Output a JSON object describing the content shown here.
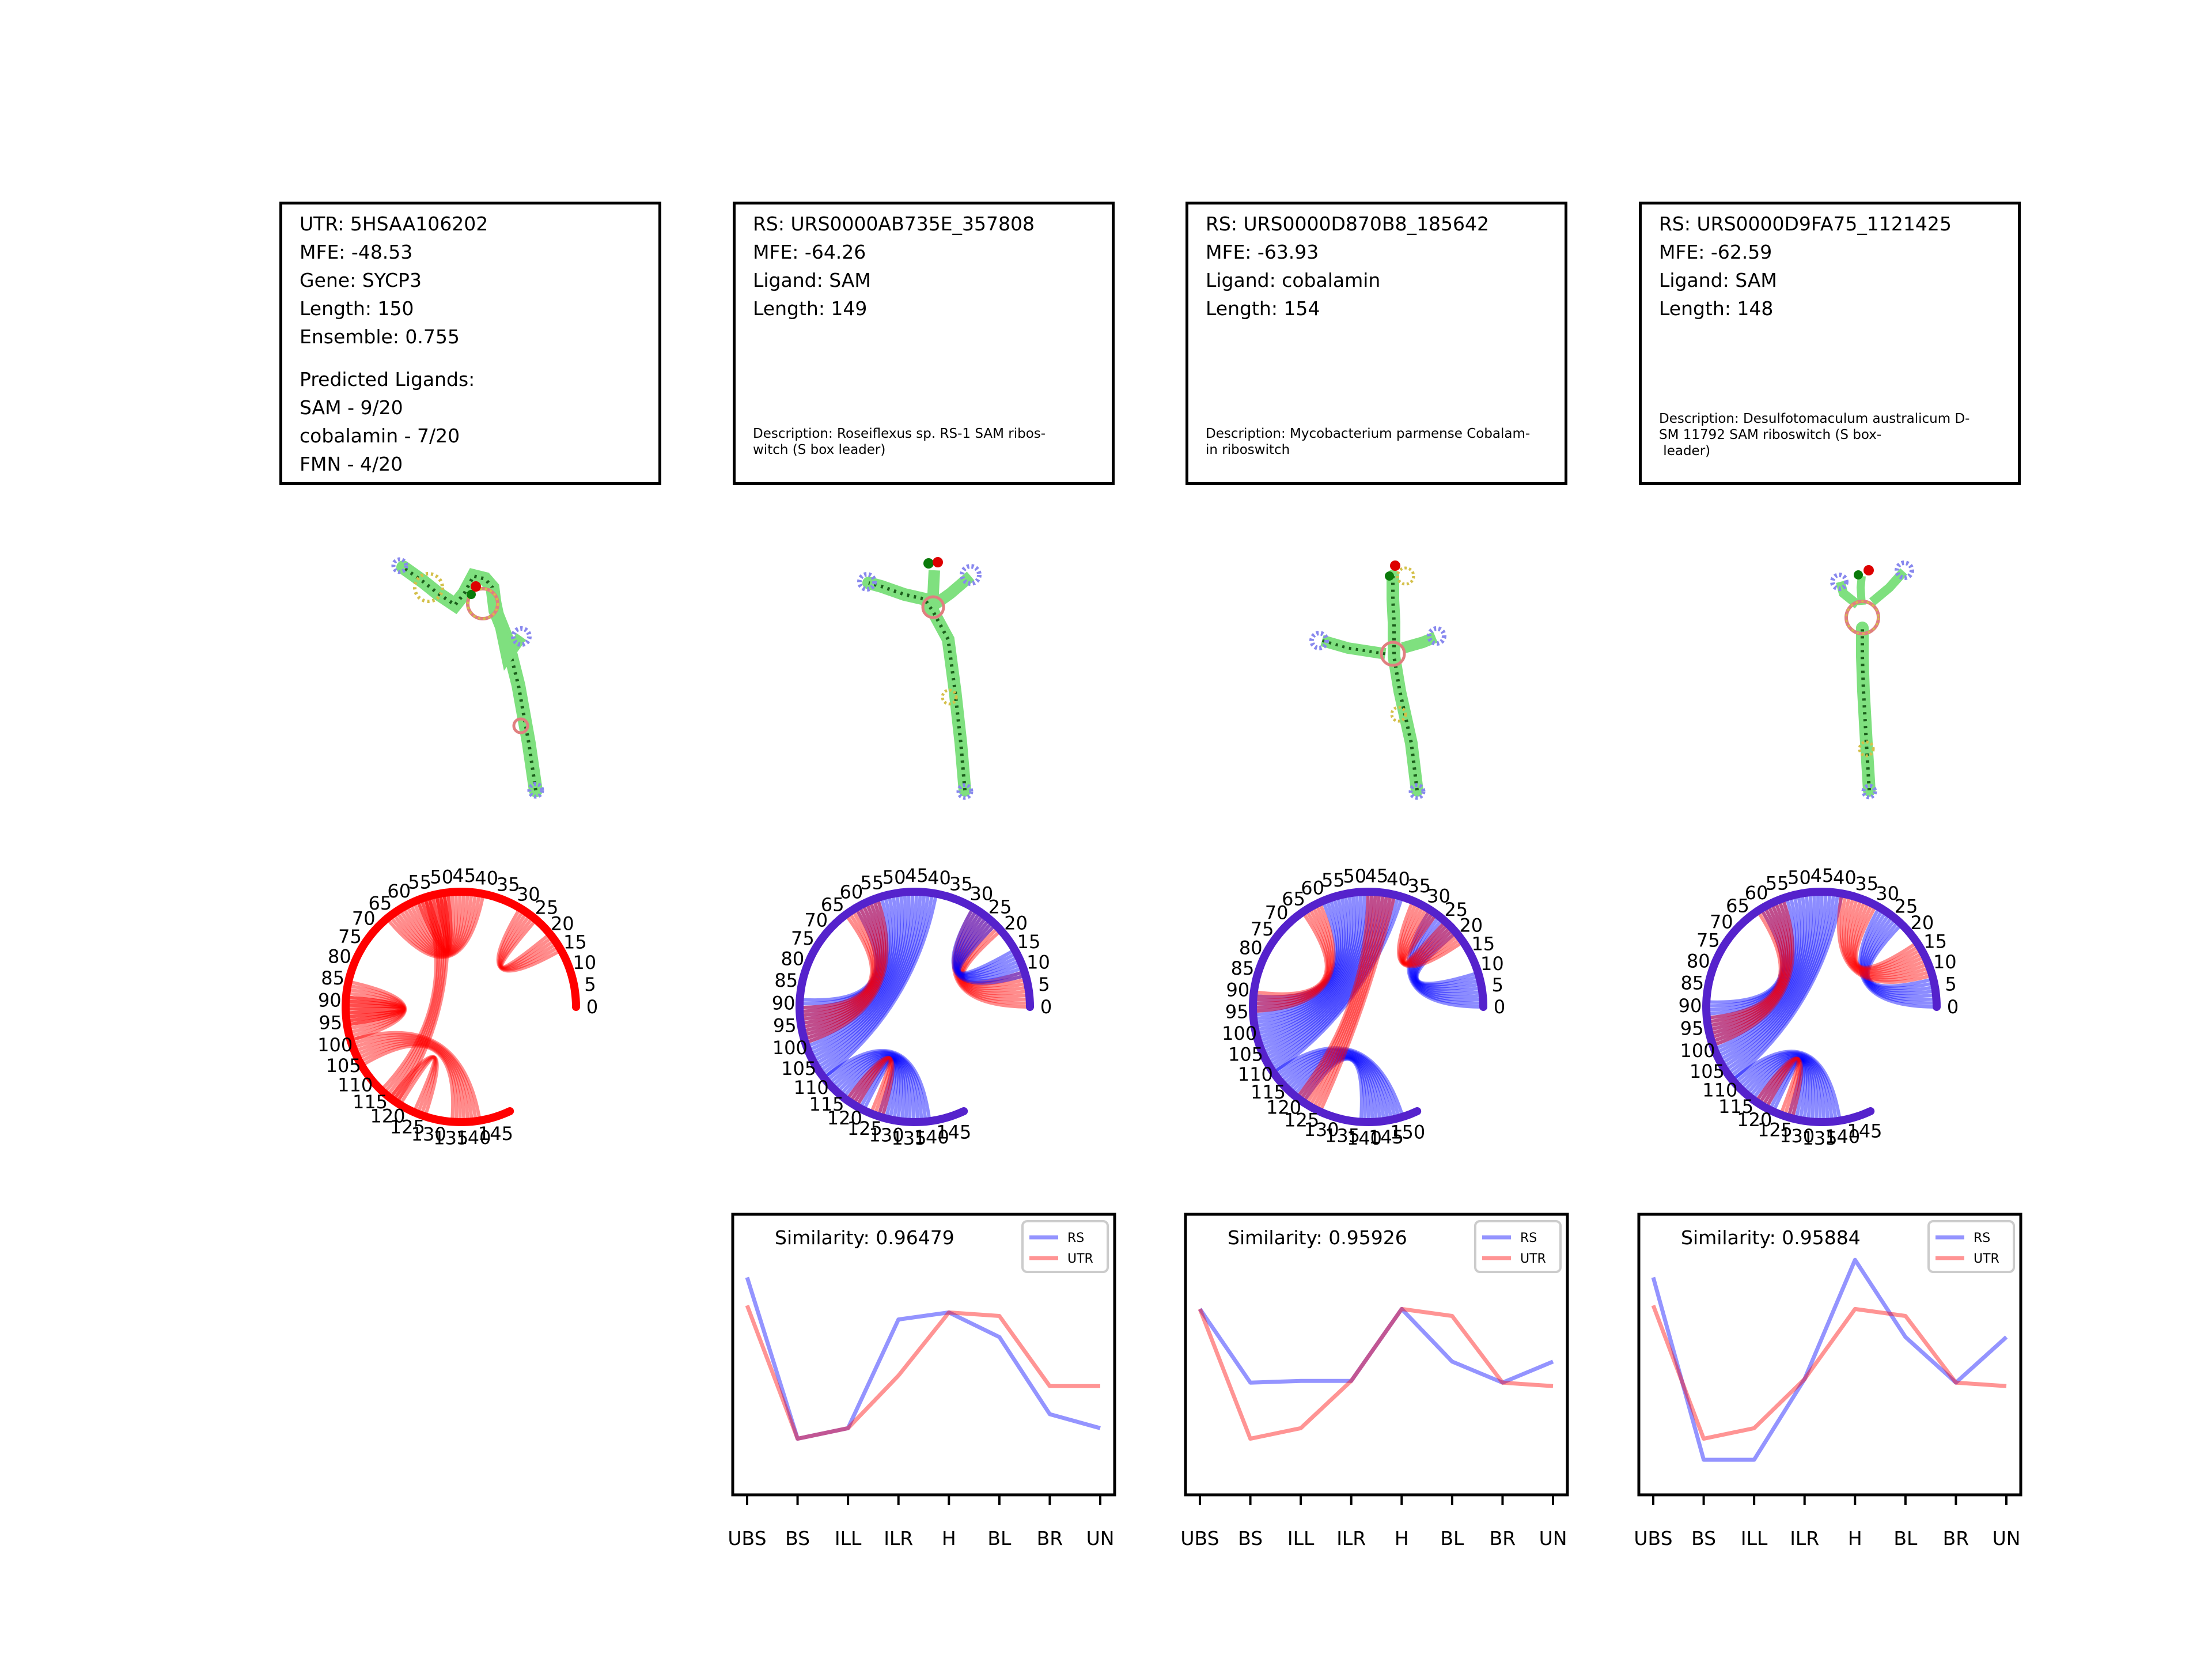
{
  "panels": [
    {
      "info": [
        "UTR: 5HSAA106202",
        "MFE: -48.53",
        "Gene: SYCP3",
        "Length: 150",
        "Ensemble: 0.755"
      ],
      "ligands_title": "Predicted Ligands:",
      "ligands": [
        "SAM - 9/20",
        "cobalamin - 7/20",
        "FMN - 4/20"
      ],
      "description": ""
    },
    {
      "info": [
        "RS: URS0000AB735E_357808",
        "MFE: -64.26",
        "Ligand: SAM",
        "Length: 149"
      ],
      "description": "Description: Roseiflexus sp. RS-1 SAM ribos-\nwitch (S box leader)"
    },
    {
      "info": [
        "RS: URS0000D870B8_185642",
        "MFE: -63.93",
        "Ligand: cobalamin",
        "Length: 154"
      ],
      "description": "Description: Mycobacterium parmense Cobalam-\nin riboswitch"
    },
    {
      "info": [
        "RS: URS0000D9FA75_1121425",
        "MFE: -62.59",
        "Ligand: SAM",
        "Length: 148"
      ],
      "description": "Description: Desulfotomaculum australicum D-\nSM 11792 SAM riboswitch (S box-\n leader)"
    }
  ],
  "arc_ticks": [
    [
      "0",
      "5",
      "10",
      "15",
      "20",
      "25",
      "30",
      "35",
      "40",
      "45",
      "50",
      "55",
      "60",
      "65",
      "70",
      "75",
      "80",
      "85",
      "90",
      "95",
      "100",
      "105",
      "110",
      "115",
      "120",
      "125",
      "130",
      "135",
      "140",
      "145"
    ],
    [
      "0",
      "5",
      "10",
      "15",
      "20",
      "25",
      "30",
      "35",
      "40",
      "45",
      "50",
      "55",
      "60",
      "65",
      "70",
      "75",
      "80",
      "85",
      "90",
      "95",
      "100",
      "105",
      "110",
      "115",
      "120",
      "125",
      "130",
      "135",
      "140",
      "145"
    ],
    [
      "0",
      "5",
      "10",
      "15",
      "20",
      "25",
      "30",
      "35",
      "40",
      "45",
      "50",
      "55",
      "60",
      "65",
      "70",
      "75",
      "80",
      "85",
      "90",
      "95",
      "100",
      "105",
      "110",
      "115",
      "120",
      "125",
      "130",
      "135",
      "140",
      "145",
      "150"
    ],
    [
      "0",
      "5",
      "10",
      "15",
      "20",
      "25",
      "30",
      "35",
      "40",
      "45",
      "50",
      "55",
      "60",
      "65",
      "70",
      "75",
      "80",
      "85",
      "90",
      "95",
      "100",
      "105",
      "110",
      "115",
      "120",
      "125",
      "130",
      "135",
      "140",
      "145"
    ]
  ],
  "chart_data": [
    {
      "type": "line",
      "title": "Similarity: 0.96479",
      "categories": [
        "UBS",
        "BS",
        "ILL",
        "ILR",
        "H",
        "BL",
        "BR",
        "UN"
      ],
      "series": [
        {
          "name": "RS",
          "color": "#0000ff",
          "values": [
            0.62,
            0.16,
            0.19,
            0.5,
            0.52,
            0.45,
            0.23,
            0.19
          ]
        },
        {
          "name": "UTR",
          "color": "#ff0000",
          "values": [
            0.54,
            0.16,
            0.19,
            0.34,
            0.52,
            0.51,
            0.31,
            0.31
          ]
        }
      ],
      "legend": "top-right"
    },
    {
      "type": "line",
      "title": "Similarity: 0.95926",
      "categories": [
        "UBS",
        "BS",
        "ILL",
        "ILR",
        "H",
        "BL",
        "BR",
        "UN"
      ],
      "series": [
        {
          "name": "RS",
          "color": "#0000ff",
          "values": [
            0.53,
            0.32,
            0.325,
            0.325,
            0.53,
            0.38,
            0.32,
            0.38
          ]
        },
        {
          "name": "UTR",
          "color": "#ff0000",
          "values": [
            0.53,
            0.16,
            0.19,
            0.325,
            0.53,
            0.51,
            0.32,
            0.31
          ]
        }
      ],
      "legend": "top-right"
    },
    {
      "type": "line",
      "title": "Similarity: 0.95884",
      "categories": [
        "UBS",
        "BS",
        "ILL",
        "ILR",
        "H",
        "BL",
        "BR",
        "UN"
      ],
      "series": [
        {
          "name": "RS",
          "color": "#0000ff",
          "values": [
            0.62,
            0.1,
            0.1,
            0.33,
            0.67,
            0.45,
            0.32,
            0.45
          ]
        },
        {
          "name": "UTR",
          "color": "#ff0000",
          "values": [
            0.54,
            0.16,
            0.19,
            0.33,
            0.53,
            0.51,
            0.32,
            0.31
          ]
        }
      ],
      "legend": "top-right"
    }
  ]
}
